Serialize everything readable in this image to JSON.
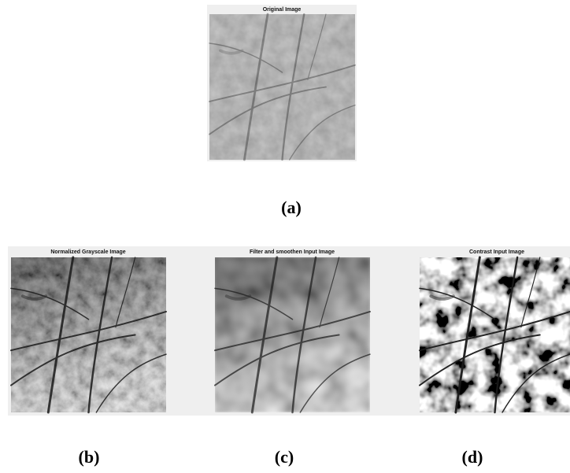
{
  "panels": [
    {
      "title": "Original  Image",
      "caption": "(a)"
    },
    {
      "title": "Normalized Grayscale Image",
      "caption": "(b)"
    },
    {
      "title": "Filter and smoothen Input Image",
      "caption": "(c)"
    },
    {
      "title": "Contrast Input Image",
      "caption": "(d)"
    }
  ]
}
